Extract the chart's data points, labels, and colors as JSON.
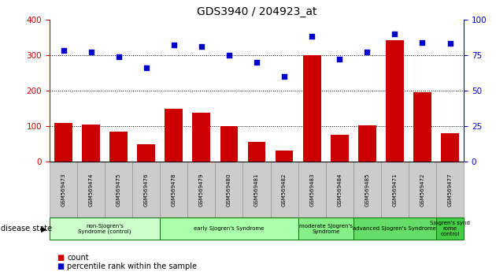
{
  "title": "GDS3940 / 204923_at",
  "samples": [
    "GSM569473",
    "GSM569474",
    "GSM569475",
    "GSM569476",
    "GSM569478",
    "GSM569479",
    "GSM569480",
    "GSM569481",
    "GSM569482",
    "GSM569483",
    "GSM569484",
    "GSM569485",
    "GSM569471",
    "GSM569472",
    "GSM569477"
  ],
  "counts": [
    110,
    105,
    85,
    50,
    150,
    138,
    100,
    55,
    32,
    300,
    75,
    102,
    342,
    195,
    80
  ],
  "percentile": [
    78,
    77,
    74,
    66,
    82,
    81,
    75,
    70,
    60,
    88,
    72,
    77,
    90,
    84,
    83
  ],
  "bar_color": "#cc0000",
  "dot_color": "#0000cc",
  "ylim_left": [
    0,
    400
  ],
  "ylim_right": [
    0,
    100
  ],
  "yticks_left": [
    0,
    100,
    200,
    300,
    400
  ],
  "yticks_right": [
    0,
    25,
    50,
    75,
    100
  ],
  "groups": [
    {
      "label": "non-Sjogren's\nSyndrome (control)",
      "start": 0,
      "end": 4
    },
    {
      "label": "early Sjogren's Syndrome",
      "start": 4,
      "end": 9
    },
    {
      "label": "moderate Sjogren's\nSyndrome",
      "start": 9,
      "end": 11
    },
    {
      "label": "advanced Sjogren's Syndrome",
      "start": 11,
      "end": 14
    },
    {
      "label": "Sjogren's synd\nrome\ncontrol",
      "start": 14,
      "end": 15
    }
  ],
  "group_colors": [
    "#ccffcc",
    "#aaffaa",
    "#88ee88",
    "#66dd66",
    "#44cc44"
  ],
  "disease_state_label": "disease state",
  "legend_count_label": "count",
  "legend_percentile_label": "percentile rank within the sample",
  "bg_color": "#ffffff",
  "tick_area_color": "#cccccc",
  "group_border_color": "#007700",
  "grid_lines": [
    100,
    200,
    300
  ],
  "bar_width": 0.65
}
